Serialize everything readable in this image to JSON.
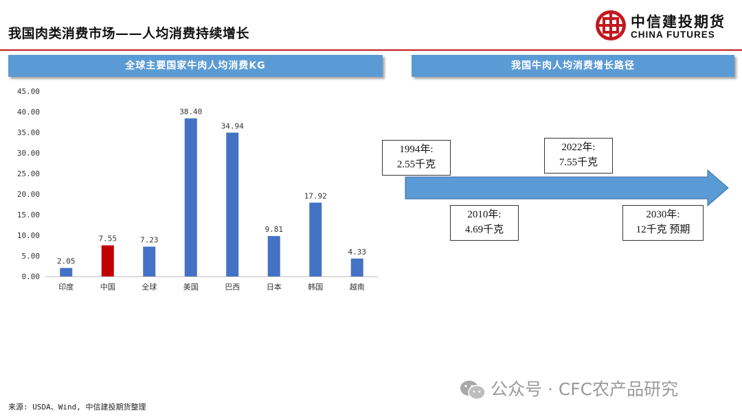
{
  "page": {
    "title": "我国肉类消费市场——人均消费持续增长",
    "source": "来源:  USDA、Wind, 中信建投期货整理",
    "watermark": "公众号 · CFC农产品研究"
  },
  "logo": {
    "name_cn": "中信建投期货",
    "name_en": "CHINA FUTURES",
    "color": "#c2181e"
  },
  "left_panel": {
    "header": "全球主要国家牛肉人均消费KG"
  },
  "right_panel": {
    "header": "我国牛肉人均消费增长路径",
    "milestones": [
      {
        "year": "1994年:",
        "value": "2.55千克"
      },
      {
        "year": "2022年:",
        "value": "7.55千克"
      },
      {
        "year": "2010年:",
        "value": "4.69千克"
      },
      {
        "year": "2030年:",
        "value": "12千克 预期"
      }
    ],
    "arrow_color": "#5b9bd5"
  },
  "chart_data": {
    "type": "bar",
    "categories": [
      "印度",
      "中国",
      "全球",
      "美国",
      "巴西",
      "日本",
      "韩国",
      "越南"
    ],
    "values": [
      2.05,
      7.55,
      7.23,
      38.4,
      34.94,
      9.81,
      17.92,
      4.33
    ],
    "data_labels": [
      "2.05",
      "7.55",
      "7.23",
      "38.40",
      "34.94",
      "9.81",
      "17.92",
      "4.33"
    ],
    "yticks": [
      "0.00",
      "5.00",
      "10.00",
      "15.00",
      "20.00",
      "25.00",
      "30.00",
      "35.00",
      "40.00",
      "45.00"
    ],
    "ylim": [
      0,
      45
    ],
    "highlight_index": 1,
    "bar_color": "#4472c4",
    "highlight_color": "#c00000",
    "grid": false,
    "title": "",
    "xlabel": "",
    "ylabel": ""
  }
}
